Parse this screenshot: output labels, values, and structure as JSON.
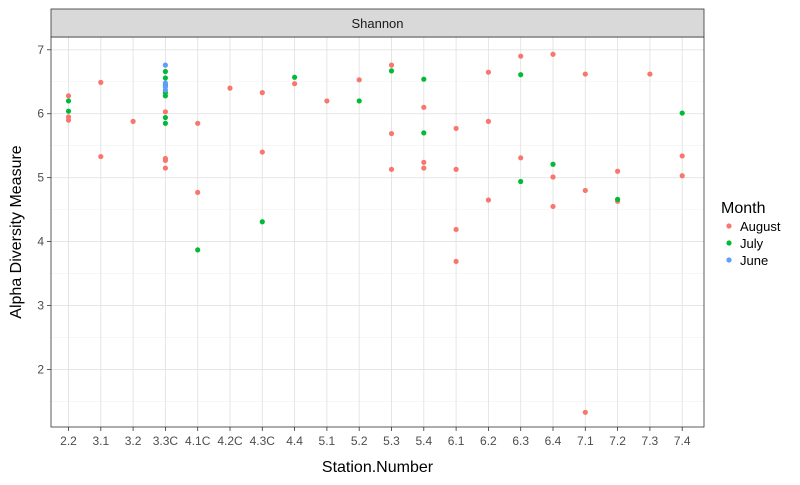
{
  "chart_data": {
    "type": "scatter",
    "facet_label": "Shannon",
    "xlabel": "Station.Number",
    "ylabel": "Alpha Diversity Measure",
    "categories": [
      "2.2",
      "3.1",
      "3.2",
      "3.3C",
      "4.1C",
      "4.2C",
      "4.3C",
      "4.4",
      "5.1",
      "5.2",
      "5.3",
      "5.4",
      "6.1",
      "6.2",
      "6.3",
      "6.4",
      "7.1",
      "7.2",
      "7.3",
      "7.4"
    ],
    "ylim": [
      1.1,
      7.2
    ],
    "yticks": [
      2,
      3,
      4,
      5,
      6,
      7
    ],
    "grid": true,
    "legend": {
      "title": "Month",
      "placement": "right",
      "entries": [
        {
          "label": "August",
          "color": "#F8766D"
        },
        {
          "label": "July",
          "color": "#00BA38"
        },
        {
          "label": "June",
          "color": "#619CFF"
        }
      ]
    },
    "series": [
      {
        "name": "August",
        "color": "#F8766D",
        "points": [
          [
            "2.2",
            6.28
          ],
          [
            "2.2",
            5.95
          ],
          [
            "2.2",
            5.9
          ],
          [
            "3.1",
            6.49
          ],
          [
            "3.1",
            5.33
          ],
          [
            "3.2",
            5.88
          ],
          [
            "3.3C",
            6.03
          ],
          [
            "3.3C",
            5.3
          ],
          [
            "3.3C",
            5.27
          ],
          [
            "3.3C",
            5.15
          ],
          [
            "4.1C",
            5.85
          ],
          [
            "4.1C",
            4.77
          ],
          [
            "4.2C",
            6.4
          ],
          [
            "4.3C",
            6.33
          ],
          [
            "4.3C",
            5.4
          ],
          [
            "4.4",
            6.47
          ],
          [
            "5.1",
            6.2
          ],
          [
            "5.2",
            6.53
          ],
          [
            "5.3",
            6.76
          ],
          [
            "5.3",
            5.69
          ],
          [
            "5.3",
            5.13
          ],
          [
            "5.4",
            6.1
          ],
          [
            "5.4",
            5.24
          ],
          [
            "5.4",
            5.15
          ],
          [
            "6.1",
            5.77
          ],
          [
            "6.1",
            5.13
          ],
          [
            "6.1",
            4.19
          ],
          [
            "6.1",
            3.69
          ],
          [
            "6.2",
            6.65
          ],
          [
            "6.2",
            5.88
          ],
          [
            "6.2",
            4.65
          ],
          [
            "6.3",
            6.9
          ],
          [
            "6.3",
            5.31
          ],
          [
            "6.4",
            6.93
          ],
          [
            "6.4",
            5.01
          ],
          [
            "6.4",
            4.55
          ],
          [
            "7.1",
            6.62
          ],
          [
            "7.1",
            4.8
          ],
          [
            "7.1",
            1.33
          ],
          [
            "7.2",
            5.1
          ],
          [
            "7.2",
            4.63
          ],
          [
            "7.3",
            6.62
          ],
          [
            "7.4",
            5.34
          ],
          [
            "7.4",
            5.03
          ]
        ]
      },
      {
        "name": "July",
        "color": "#00BA38",
        "points": [
          [
            "2.2",
            6.2
          ],
          [
            "2.2",
            6.04
          ],
          [
            "3.3C",
            6.66
          ],
          [
            "3.3C",
            6.56
          ],
          [
            "3.3C",
            6.45
          ],
          [
            "3.3C",
            6.33
          ],
          [
            "3.3C",
            6.28
          ],
          [
            "3.3C",
            5.94
          ],
          [
            "3.3C",
            5.85
          ],
          [
            "4.1C",
            3.87
          ],
          [
            "4.3C",
            4.31
          ],
          [
            "4.4",
            6.57
          ],
          [
            "5.2",
            6.2
          ],
          [
            "5.3",
            6.67
          ],
          [
            "5.4",
            6.54
          ],
          [
            "5.4",
            5.7
          ],
          [
            "6.3",
            6.61
          ],
          [
            "6.3",
            4.94
          ],
          [
            "6.4",
            5.21
          ],
          [
            "7.2",
            4.66
          ],
          [
            "7.4",
            6.01
          ]
        ]
      },
      {
        "name": "June",
        "color": "#619CFF",
        "points": [
          [
            "3.3C",
            6.76
          ],
          [
            "3.3C",
            6.48
          ],
          [
            "3.3C",
            6.42
          ],
          [
            "3.3C",
            6.37
          ]
        ]
      }
    ]
  }
}
